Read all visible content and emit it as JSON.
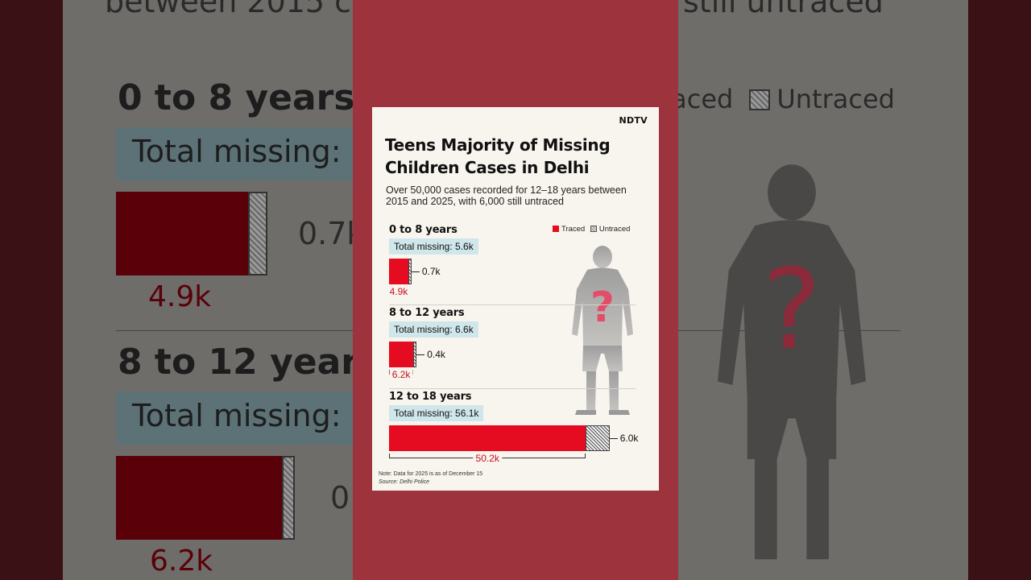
{
  "brand": "NDTV",
  "title": "Teens Majority of Missing Children Cases in Delhi",
  "subtitle": "Over 50,000 cases recorded for 12–18 years between 2015 and 2025, with 6,000 still untraced",
  "legend": {
    "traced": "Traced",
    "untraced": "Untraced"
  },
  "colors": {
    "traced": "#e50b21",
    "pill": "#cfe6ea",
    "card": "#f8f5ee",
    "strip": "#9c333d"
  },
  "chart_data": {
    "type": "bar",
    "stacked": true,
    "orientation": "horizontal",
    "title": "Teens Majority of Missing Children Cases in Delhi",
    "categories": [
      "0 to 8 years",
      "8 to 12 years",
      "12 to 18 years"
    ],
    "series": [
      {
        "name": "Traced",
        "values": [
          4.9,
          6.2,
          50.2
        ],
        "labels": [
          "4.9k",
          "6.2k",
          "50.2k"
        ]
      },
      {
        "name": "Untraced",
        "values": [
          0.7,
          0.4,
          6.0
        ],
        "labels": [
          "0.7k",
          "0.4k",
          "6.0k"
        ]
      }
    ],
    "totals": [
      "Total missing: 5.6k",
      "Total missing: 6.6k",
      "Total missing: 56.1k"
    ],
    "legend_position": "top-right"
  },
  "footer": {
    "note": "Note: Data for 2025 is as of December 15",
    "source_label": "Source:",
    "source_value": "Delhi Police"
  },
  "background": {
    "subtitle_fragment_left": "between 2015 c",
    "subtitle_fragment_right": "still untraced",
    "group1": "0 to 8 years",
    "group2": "8 to 12 years",
    "pill1": "Total missing:",
    "pill2": "Total missing:",
    "val1": "0.7k",
    "val2": "0.",
    "lab1": "4.9k",
    "lab2": "6.2k",
    "legend_fragment": "raced",
    "legend_untraced": "Untraced"
  },
  "icons": [
    "question-mark-silhouette-icon"
  ]
}
